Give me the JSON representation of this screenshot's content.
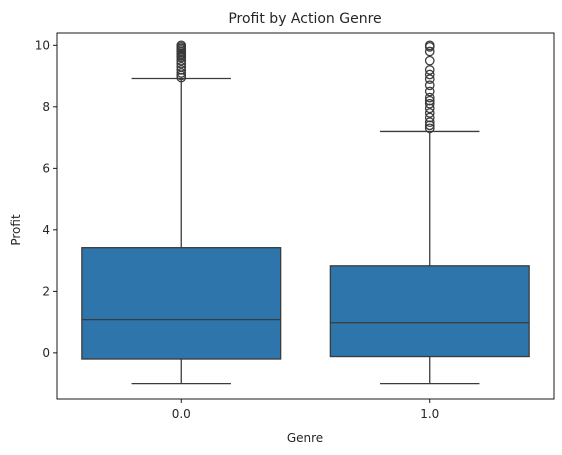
{
  "chart_data": {
    "type": "box",
    "title": "Profit by Action Genre",
    "xlabel": "Genre",
    "ylabel": "Profit",
    "categories": [
      "0.0",
      "1.0"
    ],
    "ylim": [
      -1.5,
      10.4
    ],
    "yticks": [
      0,
      2,
      4,
      6,
      8,
      10
    ],
    "grid": false,
    "box_color": "#2e75ac",
    "line_color": "#3b3b3b",
    "boxes": [
      {
        "category": "0.0",
        "whisker_low": -1.0,
        "q1": -0.2,
        "median": 1.08,
        "q3": 3.42,
        "whisker_high": 8.92,
        "outliers": [
          8.95,
          9.02,
          9.1,
          9.2,
          9.3,
          9.4,
          9.5,
          9.6,
          9.65,
          9.7,
          9.75,
          9.8,
          9.85,
          9.9,
          9.95,
          10.0
        ]
      },
      {
        "category": "1.0",
        "whisker_low": -1.0,
        "q1": -0.12,
        "median": 0.98,
        "q3": 2.83,
        "whisker_high": 7.2,
        "outliers": [
          7.3,
          7.4,
          7.5,
          7.65,
          7.8,
          7.95,
          8.1,
          8.2,
          8.3,
          8.5,
          8.7,
          8.9,
          9.05,
          9.2,
          9.5,
          9.8,
          9.95,
          10.0
        ]
      }
    ]
  }
}
